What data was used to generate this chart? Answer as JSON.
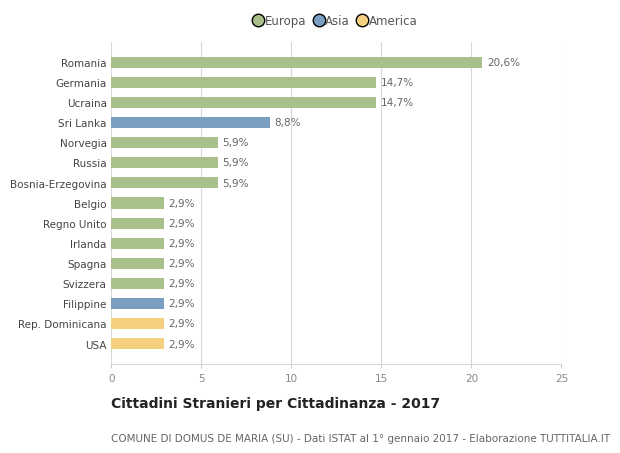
{
  "categories": [
    "Romania",
    "Germania",
    "Ucraina",
    "Sri Lanka",
    "Norvegia",
    "Russia",
    "Bosnia-Erzegovina",
    "Belgio",
    "Regno Unito",
    "Irlanda",
    "Spagna",
    "Svizzera",
    "Filippine",
    "Rep. Dominicana",
    "USA"
  ],
  "values": [
    20.6,
    14.7,
    14.7,
    8.8,
    5.9,
    5.9,
    5.9,
    2.9,
    2.9,
    2.9,
    2.9,
    2.9,
    2.9,
    2.9,
    2.9
  ],
  "labels": [
    "20,6%",
    "14,7%",
    "14,7%",
    "8,8%",
    "5,9%",
    "5,9%",
    "5,9%",
    "2,9%",
    "2,9%",
    "2,9%",
    "2,9%",
    "2,9%",
    "2,9%",
    "2,9%",
    "2,9%"
  ],
  "continents": [
    "Europa",
    "Europa",
    "Europa",
    "Asia",
    "Europa",
    "Europa",
    "Europa",
    "Europa",
    "Europa",
    "Europa",
    "Europa",
    "Europa",
    "Asia",
    "America",
    "America"
  ],
  "colors": {
    "Europa": "#a8c08a",
    "Asia": "#7a9fc2",
    "America": "#f5d080"
  },
  "xlim": [
    0,
    25
  ],
  "xticks": [
    0,
    5,
    10,
    15,
    20,
    25
  ],
  "title": "Cittadini Stranieri per Cittadinanza - 2017",
  "subtitle": "COMUNE DI DOMUS DE MARIA (SU) - Dati ISTAT al 1° gennaio 2017 - Elaborazione TUTTITALIA.IT",
  "bg_color": "#ffffff",
  "grid_color": "#d8d8d8",
  "bar_height": 0.55,
  "title_fontsize": 10,
  "subtitle_fontsize": 7.5,
  "label_fontsize": 7.5,
  "tick_fontsize": 7.5,
  "legend_fontsize": 8.5
}
